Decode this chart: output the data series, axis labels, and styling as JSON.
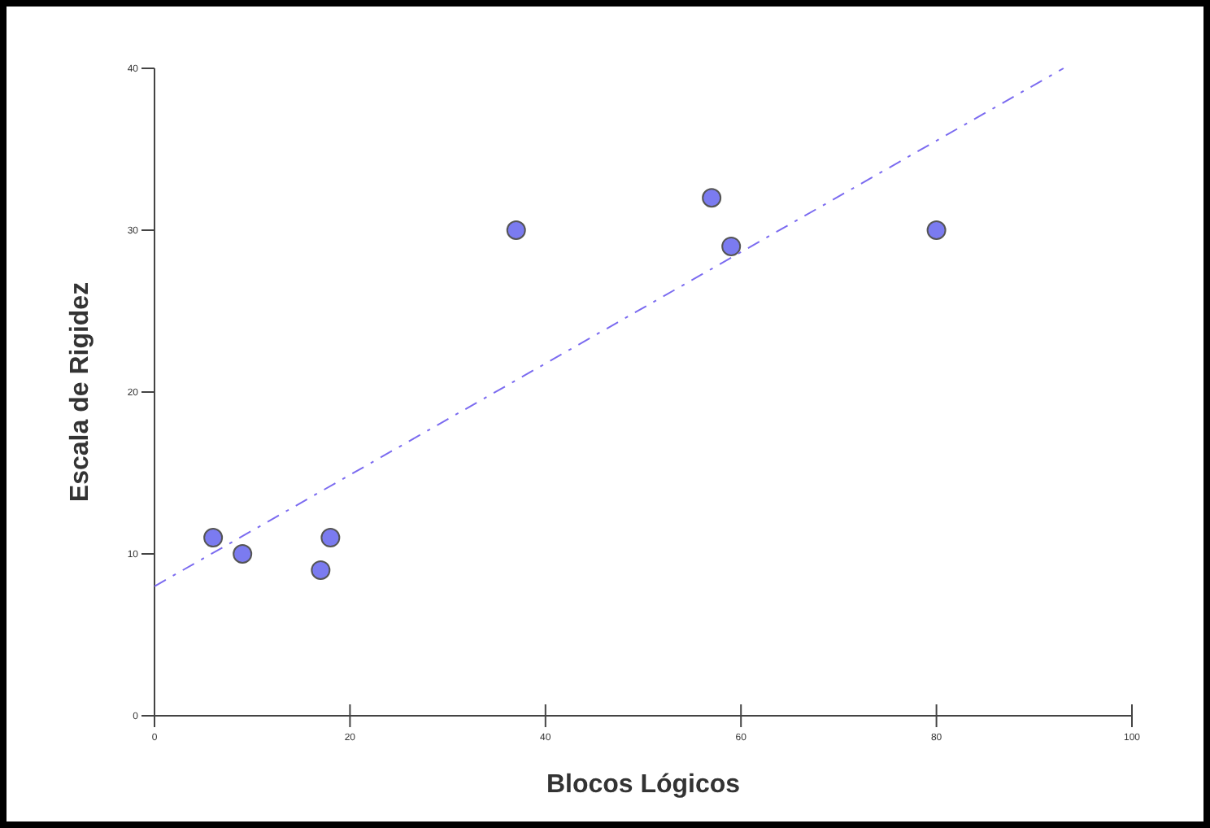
{
  "chart_data": {
    "type": "scatter",
    "xlabel": "Blocos Lógicos",
    "ylabel": "Escala de Rigidez",
    "series": [
      {
        "color": "#7b7bf0",
        "marker": "circle",
        "x": [
          6,
          9,
          17,
          18,
          37,
          57,
          59,
          80
        ],
        "values": [
          11,
          10,
          9,
          11,
          30,
          32,
          29,
          30
        ]
      },
      {
        "type": "line",
        "color": "#7b6bf0",
        "line_style": "dashed",
        "marker": "none",
        "x": [
          0,
          93
        ],
        "values": [
          8,
          40
        ]
      }
    ],
    "xlim": [
      0,
      100
    ],
    "ylim": [
      0,
      40
    ],
    "xticks": [
      0,
      20,
      40,
      60,
      80,
      100
    ],
    "yticks": [
      0,
      10,
      20,
      30,
      40
    ],
    "grid": false
  }
}
